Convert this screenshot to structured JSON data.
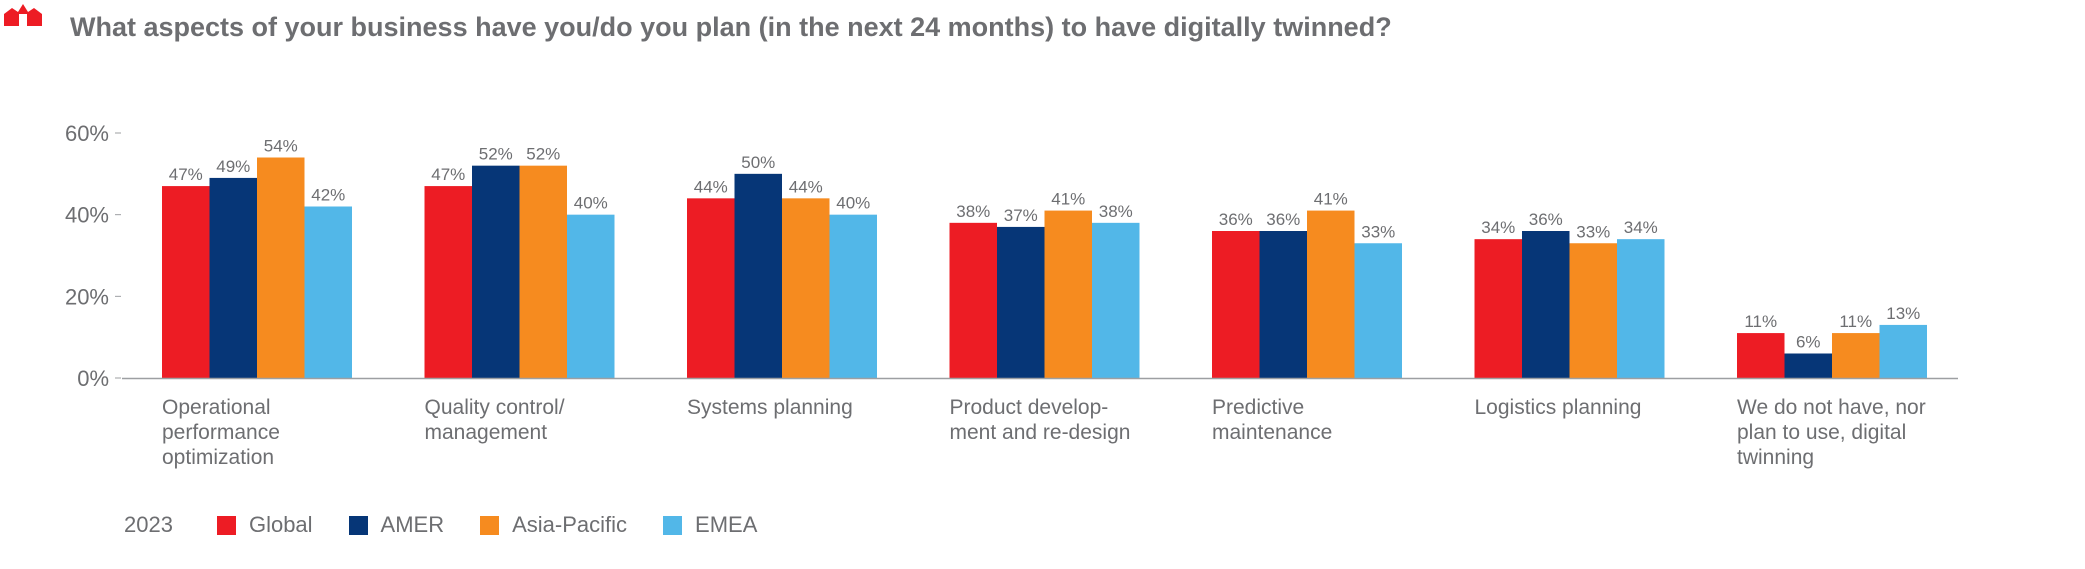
{
  "title": "What aspects of your business have you/do you plan (in the next 24 months) to have digitally twinned?",
  "legend": {
    "label": "2023",
    "entries": [
      {
        "name": "Global",
        "color": "#ed1c24"
      },
      {
        "name": "AMER",
        "color": "#063677"
      },
      {
        "name": "Asia-Pacific",
        "color": "#f68b1f"
      },
      {
        "name": "EMEA",
        "color": "#52b7e8"
      }
    ]
  },
  "chart_data": {
    "type": "bar",
    "title": "What aspects of your business have you/do you plan (in the next 24 months) to have digitally twinned?",
    "xlabel": "",
    "ylabel": "",
    "ylim": [
      0,
      60
    ],
    "yticks": [
      0,
      20,
      40,
      60
    ],
    "ytick_labels": [
      "0%",
      "20%",
      "40%",
      "60%"
    ],
    "categories": [
      [
        "Operational",
        "performance",
        "optimization"
      ],
      [
        "Quality control/",
        "management"
      ],
      [
        "Systems planning"
      ],
      [
        "Product develop-",
        "ment and re-design"
      ],
      [
        "Predictive",
        "maintenance"
      ],
      [
        "Logistics planning"
      ],
      [
        "We do not have, nor",
        "plan to use, digital",
        "twinning"
      ]
    ],
    "series": [
      {
        "name": "Global",
        "color": "#ed1c24",
        "values": [
          47,
          47,
          44,
          38,
          36,
          34,
          11
        ],
        "labels": [
          "47%",
          "47%",
          "44%",
          "38%",
          "36%",
          "34%",
          "11%"
        ]
      },
      {
        "name": "AMER",
        "color": "#063677",
        "values": [
          49,
          52,
          50,
          37,
          36,
          36,
          6
        ],
        "labels": [
          "49%",
          "52%",
          "50%",
          "37%",
          "36%",
          "36%",
          "6%"
        ]
      },
      {
        "name": "Asia-Pacific",
        "color": "#f68b1f",
        "values": [
          54,
          52,
          44,
          41,
          41,
          33,
          11
        ],
        "labels": [
          "54%",
          "52%",
          "44%",
          "41%",
          "41%",
          "33%",
          "11%"
        ]
      },
      {
        "name": "EMEA",
        "color": "#52b7e8",
        "values": [
          42,
          40,
          40,
          38,
          33,
          34,
          13
        ],
        "labels": [
          "42%",
          "40%",
          "40%",
          "38%",
          "33%",
          "34%",
          "13%"
        ]
      }
    ],
    "grid": false,
    "legend_position": "bottom-left"
  }
}
